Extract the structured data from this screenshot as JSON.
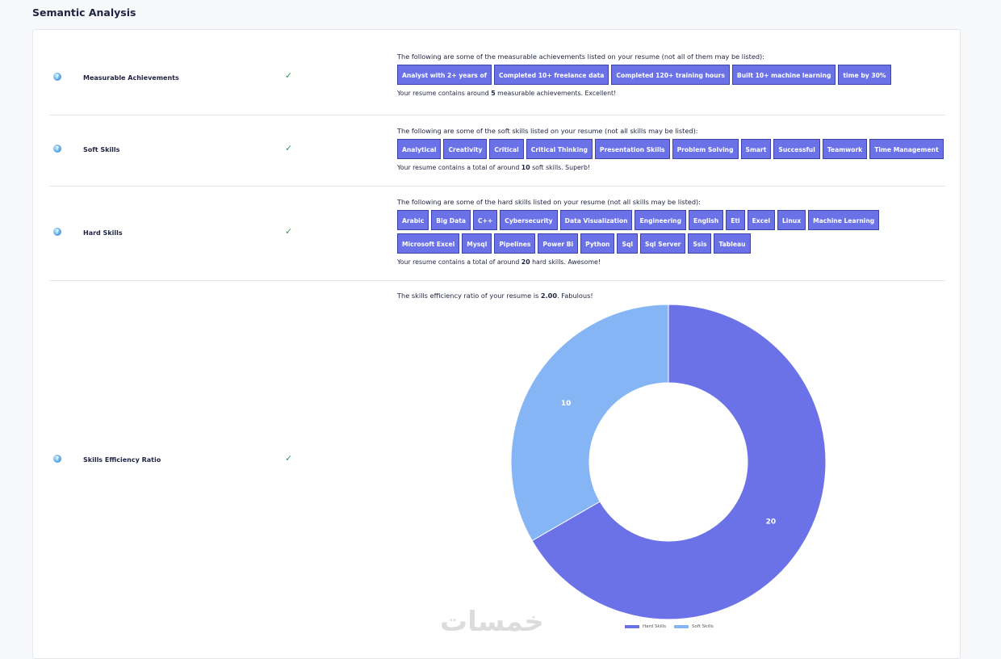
{
  "page": {
    "title": "Semantic Analysis"
  },
  "rows": {
    "measurable": {
      "label": "Measurable Achievements",
      "intro": "The following are some of the measurable achievements listed on your resume (not all of them may be listed):",
      "tags": [
        "Analyst with 2+ years of",
        "Completed 10+ freelance data",
        "Completed 120+ training hours",
        "Built 10+ machine learning",
        "time by 30%"
      ],
      "summary_pre": "Your resume contains around ",
      "summary_num": "5",
      "summary_post": " measurable achievements. Excellent!"
    },
    "soft": {
      "label": "Soft Skills",
      "intro": "The following are some of the soft skills listed on your resume (not all skills may be listed):",
      "tags": [
        "Analytical",
        "Creativity",
        "Critical",
        "Critical Thinking",
        "Presentation Skills",
        "Problem Solving",
        "Smart",
        "Successful",
        "Teamwork",
        "Time Management"
      ],
      "summary_pre": "Your resume contains a total of around ",
      "summary_num": "10",
      "summary_post": " soft skills. Superb!"
    },
    "hard": {
      "label": "Hard Skills",
      "intro": "The following are some of the hard skills listed on your resume (not all skills may be listed):",
      "tags": [
        "Arabic",
        "Big Data",
        "C++",
        "Cybersecurity",
        "Data Visualization",
        "Engineering",
        "English",
        "Etl",
        "Excel",
        "Linux",
        "Machine Learning",
        "Microsoft Excel",
        "Mysql",
        "Pipelines",
        "Power Bi",
        "Python",
        "Sql",
        "Sql Server",
        "Ssis",
        "Tableau"
      ],
      "summary_pre": "Your resume contains a total of around ",
      "summary_num": "20",
      "summary_post": " hard skills. Awesome!"
    },
    "ratio": {
      "label": "Skills Efficiency Ratio",
      "intro_pre": "The skills efficiency ratio of your resume is ",
      "intro_num": "2.00",
      "intro_post": ". Fabulous!"
    }
  },
  "chart_data": {
    "type": "pie",
    "donut": true,
    "title": "",
    "categories": [
      "Hard Skills",
      "Soft Skills"
    ],
    "values": [
      20,
      10
    ],
    "colors": [
      "#6b72e8",
      "#85b5f5"
    ],
    "legend": "bottom"
  },
  "watermark": "خمسات"
}
